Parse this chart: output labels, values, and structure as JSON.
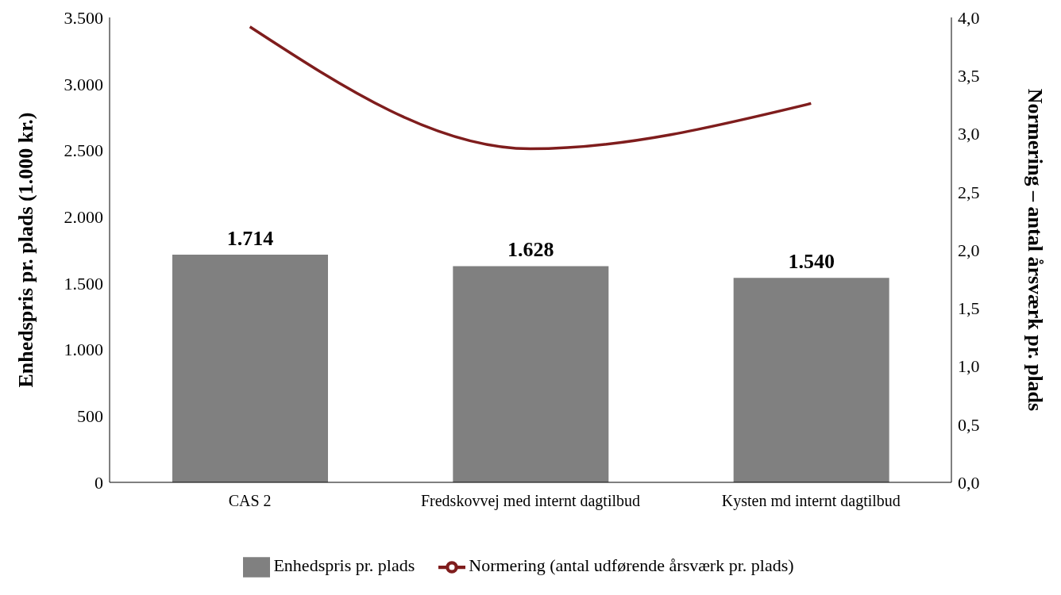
{
  "chart_data": {
    "type": "bar",
    "categories": [
      "CAS 2",
      "Fredskovvej  med internt dagtilbud",
      "Kysten md internt dagtilbud"
    ],
    "series": [
      {
        "name": "Enhedspris pr. plads",
        "color": "#808080",
        "values": [
          1714,
          1628,
          1540
        ],
        "value_labels": [
          "1.714",
          "1.628",
          "1.540"
        ]
      },
      {
        "name": "Normering (antal udførende årsværk pr. plads)",
        "type": "line",
        "axis": "y2",
        "color": "#7f1d1d",
        "values": [
          3.92,
          2.87,
          3.26
        ]
      }
    ],
    "ylabel": "Enhedspris pr. plads (1.000 kr.)",
    "y2label": "Normering – antal årsværk pr. plads",
    "ylim": [
      0,
      3500
    ],
    "yticks": [
      0,
      {
        "value": 500,
        "label": "500"
      },
      {
        "value": 1000,
        "label": "1.000"
      },
      {
        "value": 1500,
        "label": "1.500"
      },
      {
        "value": 2000,
        "label": "2.000"
      },
      {
        "value": 2500,
        "label": "2.500"
      },
      {
        "value": 3000,
        "label": "3.000"
      },
      {
        "value": 3500,
        "label": "3.500"
      }
    ],
    "y2lim": [
      0,
      4
    ],
    "y2ticks": [
      {
        "value": 0,
        "label": "0,0"
      },
      {
        "value": 0.5,
        "label": "0,5"
      },
      {
        "value": 1,
        "label": "1,0"
      },
      {
        "value": 1.5,
        "label": "1,5"
      },
      {
        "value": 2,
        "label": "2,0"
      },
      {
        "value": 2.5,
        "label": "2,5"
      },
      {
        "value": 3,
        "label": "3,0"
      },
      {
        "value": 3.5,
        "label": "3,5"
      },
      {
        "value": 4,
        "label": "4,0"
      }
    ],
    "grid": false,
    "legend": "bottom"
  }
}
